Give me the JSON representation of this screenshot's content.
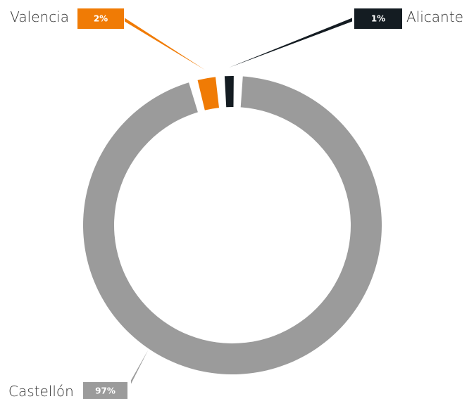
{
  "chart_data": {
    "type": "pie",
    "title": "",
    "categories": [
      "Castellón",
      "Valencia",
      "Alicante"
    ],
    "values": [
      97,
      2,
      1
    ],
    "value_labels": [
      "97%",
      "2%",
      "1%"
    ],
    "colors": [
      "#9b9b9b",
      "#f07b05",
      "#141c22"
    ],
    "donut": true,
    "legend": "none"
  }
}
